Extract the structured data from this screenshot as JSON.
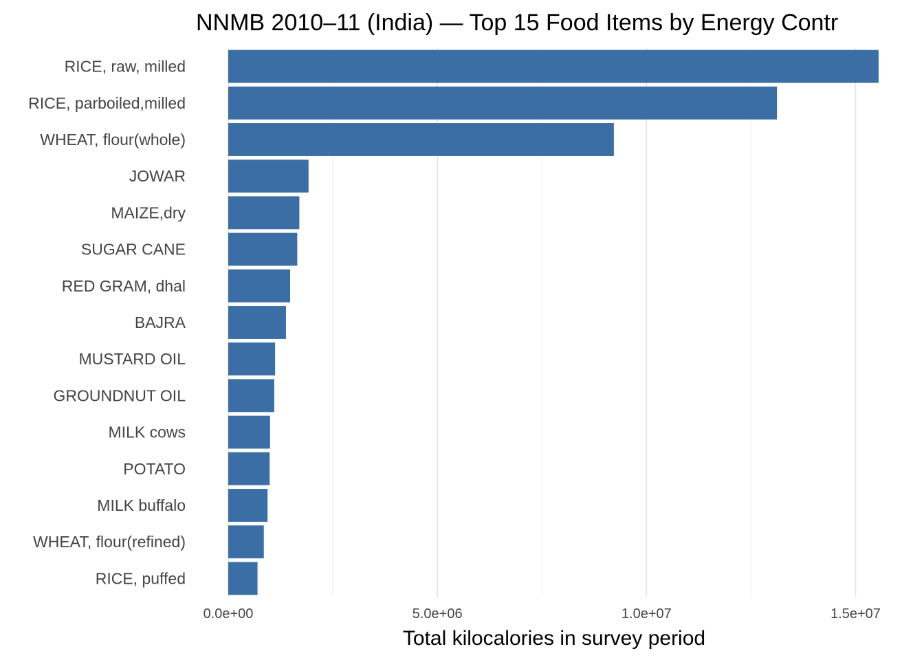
{
  "chart_data": {
    "type": "bar",
    "orientation": "horizontal",
    "title": "NNMB 2010–11 (India) — Top 15 Food Items by Energy Contr",
    "xlabel": "Total kilocalories in survey period",
    "ylabel": "",
    "xlim": [
      0,
      15600000
    ],
    "x_ticks": [
      0,
      5000000,
      10000000,
      15000000
    ],
    "x_tick_labels": [
      "0.0e+00",
      "5.0e+06",
      "1.0e+07",
      "1.5e+07"
    ],
    "grid": true,
    "legend": "none",
    "bar_color": "#3a6ea5",
    "categories": [
      "RICE, raw, milled",
      "RICE, parboiled,milled",
      "WHEAT, flour(whole)",
      "JOWAR",
      "MAIZE,dry",
      "SUGAR CANE",
      "RED GRAM, dhal",
      "BAJRA",
      "MUSTARD OIL",
      "GROUNDNUT OIL",
      "MILK cows",
      "POTATO",
      "MILK buffalo",
      "WHEAT, flour(refined)",
      "RICE, puffed"
    ],
    "values": [
      15550000,
      13120000,
      9220000,
      1920000,
      1700000,
      1650000,
      1480000,
      1380000,
      1120000,
      1100000,
      1000000,
      990000,
      940000,
      850000,
      700000
    ]
  }
}
